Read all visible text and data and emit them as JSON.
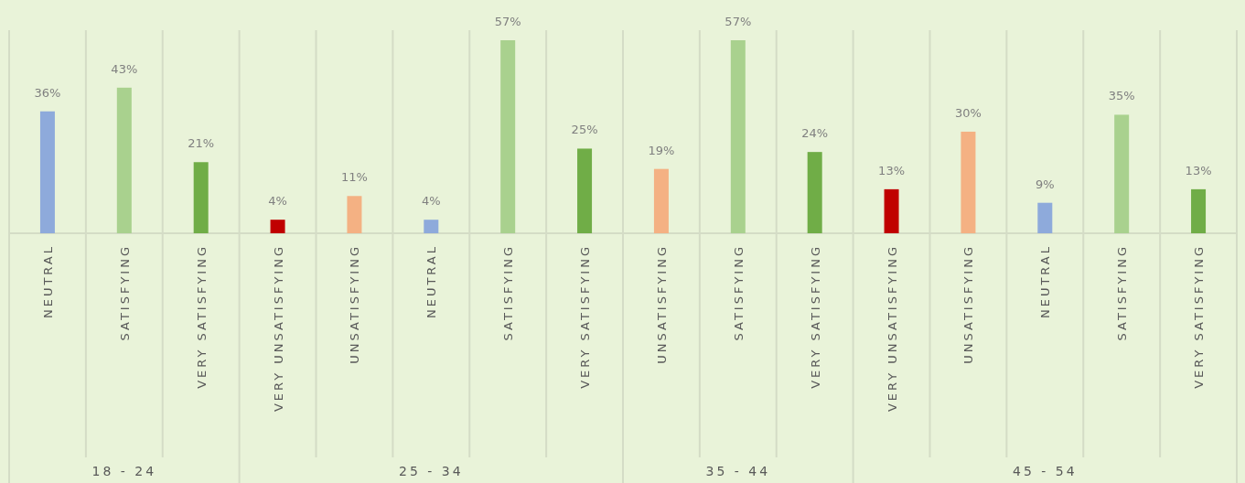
{
  "chart_data": [
    {
      "type": "bar",
      "title": "18 - 24",
      "categories": [
        "NEUTRAL",
        "SATISFYING",
        "VERY SATISFYING"
      ],
      "values": [
        36,
        43,
        21
      ],
      "colors": [
        "#8eaadb",
        "#a9d18e",
        "#70ad47"
      ],
      "value_labels": [
        "36%",
        "43%",
        "21%"
      ]
    },
    {
      "type": "bar",
      "title": "25 - 34",
      "categories": [
        "VERY UNSATISFYING",
        "UNSATISFYING",
        "NEUTRAL",
        "SATISFYING",
        "VERY SATISFYING"
      ],
      "values": [
        4,
        11,
        4,
        57,
        25
      ],
      "colors": [
        "#c00000",
        "#f4b183",
        "#8eaadb",
        "#a9d18e",
        "#70ad47"
      ],
      "value_labels": [
        "4%",
        "11%",
        "4%",
        "57%",
        "25%"
      ]
    },
    {
      "type": "bar",
      "title": "35 - 44",
      "categories": [
        "UNSATISFYING",
        "SATISFYING",
        "VERY SATISFYING"
      ],
      "values": [
        19,
        57,
        24
      ],
      "colors": [
        "#f4b183",
        "#a9d18e",
        "#70ad47"
      ],
      "value_labels": [
        "19%",
        "57%",
        "24%"
      ]
    },
    {
      "type": "bar",
      "title": "45 - 54",
      "categories": [
        "VERY UNSATISFYING",
        "UNSATISFYING",
        "NEUTRAL",
        "SATISFYING",
        "VERY SATISFYING"
      ],
      "values": [
        13,
        30,
        9,
        35,
        13
      ],
      "colors": [
        "#c00000",
        "#f4b183",
        "#8eaadb",
        "#a9d18e",
        "#70ad47"
      ],
      "value_labels": [
        "13%",
        "30%",
        "9%",
        "35%",
        "13%"
      ]
    }
  ]
}
